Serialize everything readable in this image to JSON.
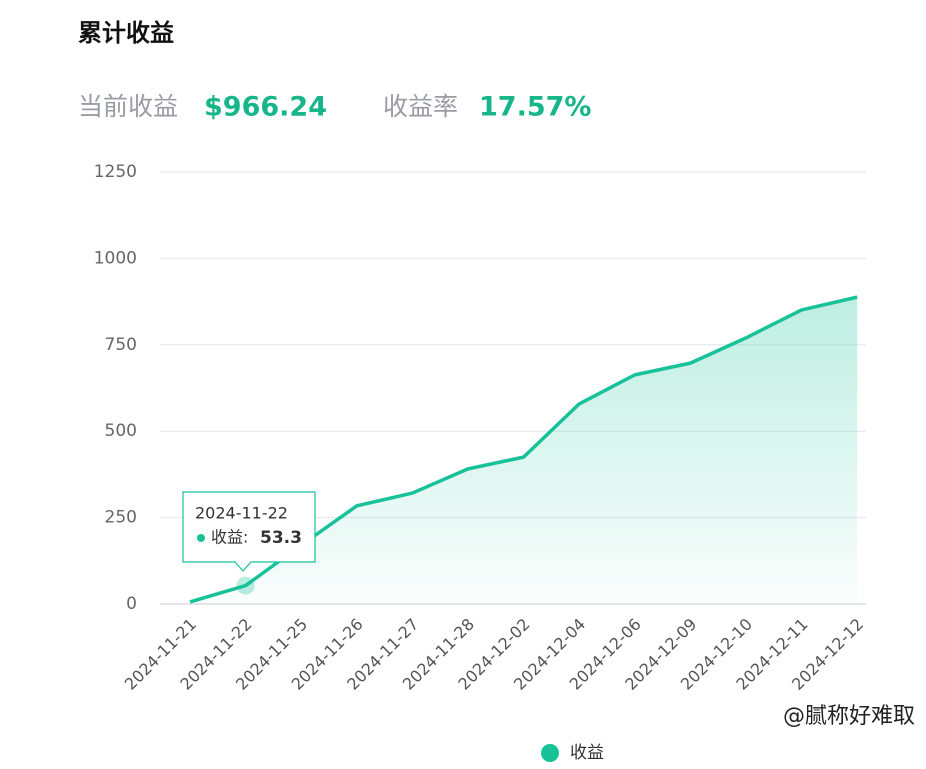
{
  "header": {
    "title": "累计收益",
    "current_label": "当前收益",
    "current_value": "$966.24",
    "rate_label": "收益率",
    "rate_value": "17.57%"
  },
  "watermark": "@腻称好难取",
  "chart_data": {
    "type": "area",
    "categories": [
      "2024-11-21",
      "2024-11-22",
      "2024-11-25",
      "2024-11-26",
      "2024-11-27",
      "2024-11-28",
      "2024-12-02",
      "2024-12-04",
      "2024-12-06",
      "2024-12-09",
      "2024-12-10",
      "2024-12-11",
      "2024-12-12"
    ],
    "series": [
      {
        "name": "收益",
        "color": "#17c298",
        "values": [
          6,
          53.3,
          170,
          284,
          321,
          391,
          425,
          579,
          663,
          697,
          770,
          851,
          888
        ]
      }
    ],
    "ylim": [
      0,
      1250
    ],
    "yticks": [
      0,
      250,
      500,
      750,
      1000,
      1250
    ],
    "grid": true,
    "legend": "bottom",
    "tooltip": {
      "title": "2024-11-22",
      "label": "收益:",
      "value": "53.3"
    }
  }
}
